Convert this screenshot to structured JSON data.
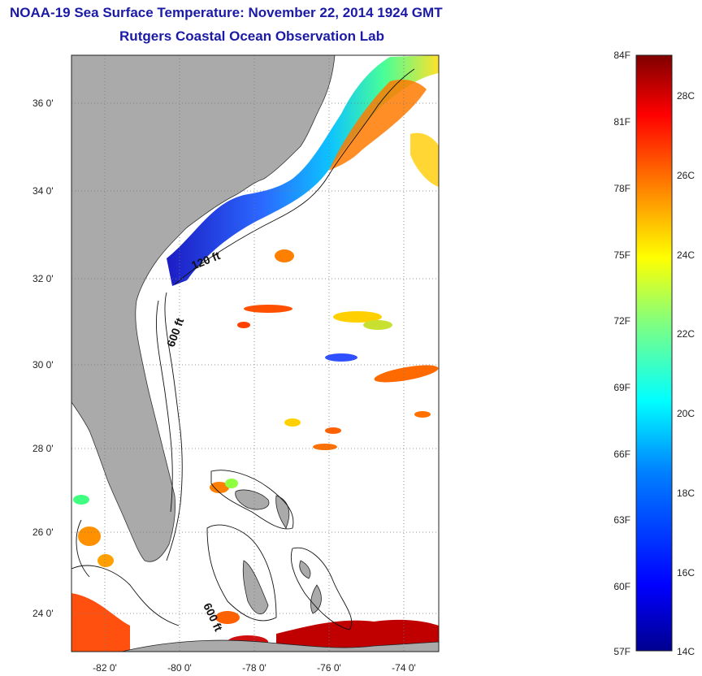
{
  "title": {
    "line1": "NOAA-19 Sea Surface Temperature:  November 22, 2014 1924 GMT",
    "line2": "Rutgers Coastal Ocean Observation Lab"
  },
  "map": {
    "lat_range": [
      23.0,
      37.1
    ],
    "lon_range": [
      -83.0,
      -72.9
    ],
    "lat_ticks": [
      "36 0'",
      "34 0'",
      "32 0'",
      "30 0'",
      "28 0'",
      "26 0'",
      "24 0'"
    ],
    "lon_ticks": [
      "-82 0'",
      "-80 0'",
      "-78 0'",
      "-76 0'",
      "-74 0'"
    ],
    "grid": true,
    "land_color": "#aaaaaa",
    "contour_labels": [
      "120 ft",
      "600 ft",
      "600 ft"
    ]
  },
  "colorbar": {
    "left_labels": [
      "84F",
      "81F",
      "78F",
      "75F",
      "72F",
      "69F",
      "66F",
      "63F",
      "60F",
      "57F"
    ],
    "right_labels": [
      "28C",
      "26C",
      "24C",
      "22C",
      "20C",
      "18C",
      "16C",
      "14C"
    ],
    "colors": [
      "#7f0000",
      "#ff0000",
      "#ff8000",
      "#ffff00",
      "#80ff80",
      "#00ffff",
      "#0080ff",
      "#0000ff",
      "#00008f"
    ]
  }
}
